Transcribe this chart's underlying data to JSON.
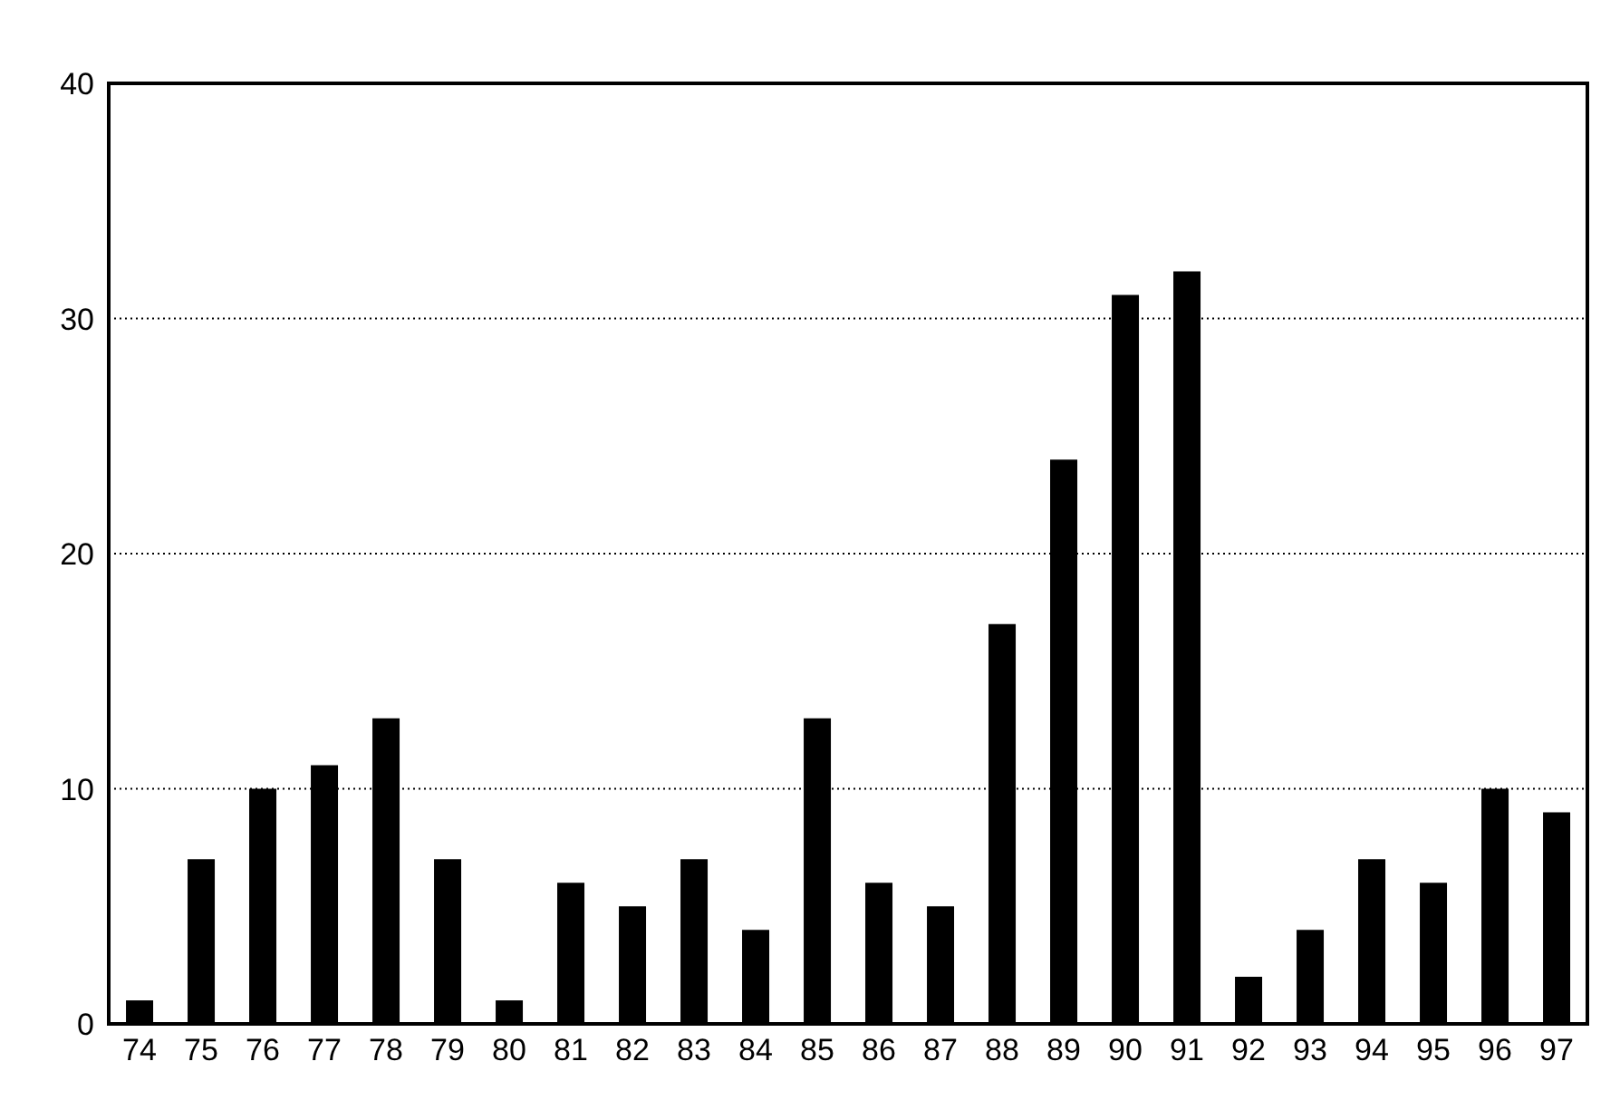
{
  "chart_data": {
    "type": "bar",
    "categories": [
      "74",
      "75",
      "76",
      "77",
      "78",
      "79",
      "80",
      "81",
      "82",
      "83",
      "84",
      "85",
      "86",
      "87",
      "88",
      "89",
      "90",
      "91",
      "92",
      "93",
      "94",
      "95",
      "96",
      "97"
    ],
    "values": [
      1,
      7,
      10,
      11,
      13,
      7,
      1,
      6,
      5,
      7,
      4,
      13,
      6,
      5,
      17,
      24,
      31,
      32,
      2,
      4,
      7,
      6,
      10,
      9
    ],
    "color": "#000000",
    "ylim": [
      0,
      40
    ],
    "yticks": [
      0,
      10,
      20,
      30,
      40
    ],
    "grid": "y"
  }
}
